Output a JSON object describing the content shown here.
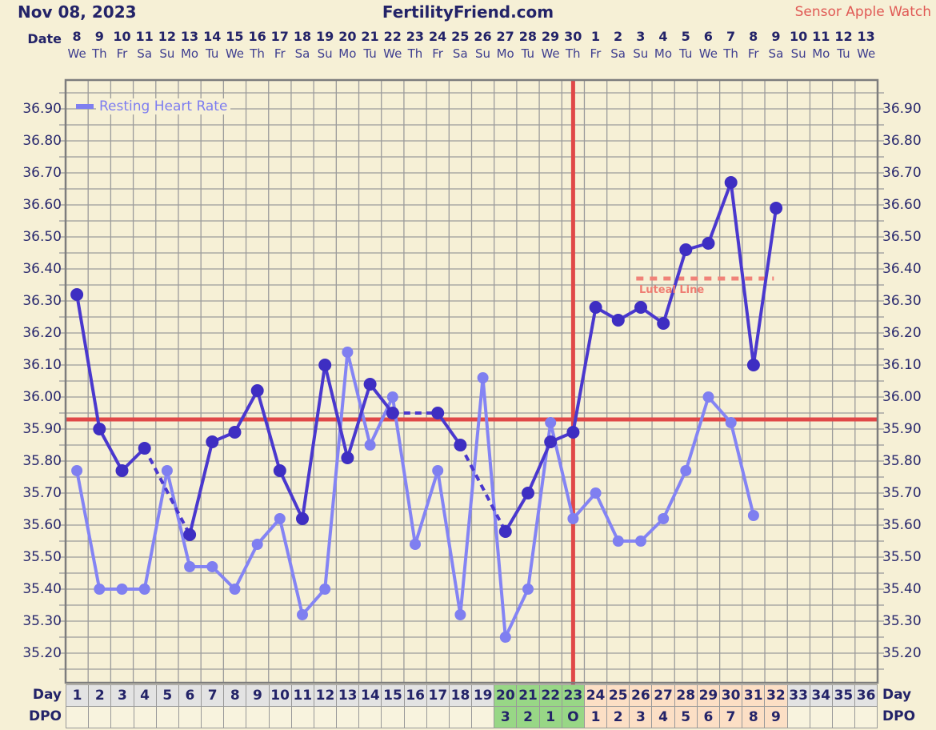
{
  "header": {
    "date": "Nov 08, 2023",
    "title": "FertilityFriend.com",
    "sensor": "Sensor Apple Watch"
  },
  "labels": {
    "date_row": "Date",
    "day_row": "Day",
    "dpo_row": "DPO",
    "legend_rhr": "Resting Heart Rate",
    "luteal": "Luteal Line"
  },
  "colors": {
    "background": "#f6f0d6",
    "grid": "#9b9b9b",
    "chart_border": "#7d7d7d",
    "navy_text": "#232368",
    "weekday_text": "#3d3d8f",
    "temp_line": "#4a38ce",
    "temp_point": "#3e2ec2",
    "rhr_line": "#8484f4",
    "rhr_point": "#7f7ff0",
    "red_line": "#e04848",
    "luteal_line": "#f08278",
    "sensor_text": "#e05a55",
    "cell_gray": "#e3e3e3",
    "cell_green": "#98d786",
    "cell_peach": "#fcdfc5"
  },
  "chart_data": {
    "type": "line",
    "title": "FertilityFriend.com BBT chart",
    "x_dates": [
      "8",
      "9",
      "10",
      "11",
      "12",
      "13",
      "14",
      "15",
      "16",
      "17",
      "18",
      "19",
      "20",
      "21",
      "22",
      "23",
      "24",
      "25",
      "26",
      "27",
      "28",
      "29",
      "30",
      "1",
      "2",
      "3",
      "4",
      "5",
      "6",
      "7",
      "8",
      "9",
      "10",
      "11",
      "12",
      "13"
    ],
    "x_weekdays": [
      "We",
      "Th",
      "Fr",
      "Sa",
      "Su",
      "Mo",
      "Tu",
      "We",
      "Th",
      "Fr",
      "Sa",
      "Su",
      "Mo",
      "Tu",
      "We",
      "Th",
      "Fr",
      "Sa",
      "Su",
      "Mo",
      "Tu",
      "We",
      "Th",
      "Fr",
      "Sa",
      "Su",
      "Mo",
      "Tu",
      "We",
      "Th",
      "Fr",
      "Sa",
      "Su",
      "Mo",
      "Tu",
      "We"
    ],
    "day_numbers": [
      "1",
      "2",
      "3",
      "4",
      "5",
      "6",
      "7",
      "8",
      "9",
      "10",
      "11",
      "12",
      "13",
      "14",
      "15",
      "16",
      "17",
      "18",
      "19",
      "20",
      "21",
      "22",
      "23",
      "24",
      "25",
      "26",
      "27",
      "28",
      "29",
      "30",
      "31",
      "32",
      "33",
      "34",
      "35",
      "36"
    ],
    "dpo": [
      "",
      "",
      "",
      "",
      "",
      "",
      "",
      "",
      "",
      "",
      "",
      "",
      "",
      "",
      "",
      "",
      "",
      "",
      "",
      "3",
      "2",
      "1",
      "O",
      "1",
      "2",
      "3",
      "4",
      "5",
      "6",
      "7",
      "8",
      "9",
      "",
      "",
      "",
      ""
    ],
    "y_ticks": [
      "36.90",
      "36.80",
      "36.70",
      "36.60",
      "36.50",
      "36.40",
      "36.30",
      "36.20",
      "36.10",
      "36.00",
      "35.90",
      "35.80",
      "35.70",
      "35.60",
      "35.50",
      "35.40",
      "35.30",
      "35.20"
    ],
    "y_tick_max": 36.9,
    "y_tick_step": 0.1,
    "grid_step": 0.05,
    "ylim": [
      35.11,
      36.99
    ],
    "series": [
      {
        "name": "Temperature",
        "values": [
          36.32,
          35.9,
          35.77,
          35.84,
          null,
          35.57,
          35.86,
          35.89,
          36.02,
          35.77,
          35.62,
          36.1,
          35.81,
          36.04,
          35.95,
          null,
          35.95,
          35.85,
          null,
          35.58,
          35.7,
          35.86,
          35.89,
          36.28,
          36.24,
          36.28,
          36.23,
          36.46,
          36.48,
          36.67,
          36.1,
          36.59,
          null,
          null,
          null,
          null
        ]
      },
      {
        "name": "Resting Heart Rate",
        "values": [
          35.77,
          35.4,
          35.4,
          35.4,
          35.77,
          35.47,
          35.47,
          35.4,
          35.54,
          35.62,
          35.32,
          35.4,
          36.14,
          35.85,
          36.0,
          35.54,
          35.77,
          35.32,
          36.06,
          35.25,
          35.4,
          35.92,
          35.62,
          35.7,
          35.55,
          35.55,
          35.62,
          35.77,
          36.0,
          35.92,
          35.63,
          null,
          null,
          null,
          null,
          null
        ]
      }
    ],
    "coverline_value": 35.93,
    "ovulation_day": 23,
    "luteal_line": {
      "value": 36.37,
      "day_span": [
        25.3,
        31.4
      ]
    },
    "cell_phases": {
      "gray_days": [
        [
          1,
          19
        ],
        [
          33,
          36
        ]
      ],
      "green_days": [
        20,
        23
      ],
      "peach_days": [
        24,
        32
      ]
    }
  }
}
